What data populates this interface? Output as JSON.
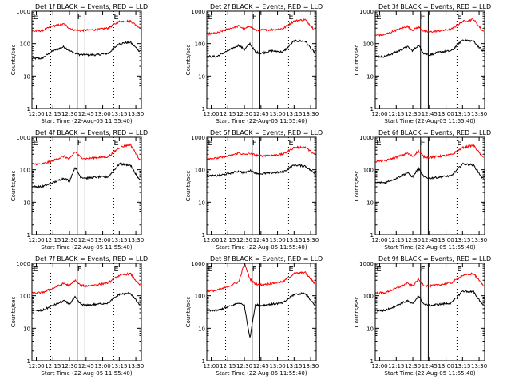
{
  "chart_data": [
    {
      "type": "line",
      "title": "Det 1f BLACK = Events, RED = LLD",
      "xlabel": "Start Time (22-Aug-05 11:55:40)",
      "ylabel": "Counts/sec",
      "yscale": "log",
      "ylim": [
        1,
        1000
      ],
      "xlim": [
        "11:56",
        "13:35"
      ],
      "x_tick_labels": [
        "12:00",
        "12:15",
        "12:30",
        "12:45",
        "13:00",
        "13:15",
        "13:30"
      ],
      "y_tick_labels": [
        "1",
        "10",
        "100",
        "1000"
      ],
      "markers": [
        "E",
        "F",
        "E"
      ],
      "colors": {
        "events": "#000000",
        "lld": "#ff0000"
      },
      "series": [
        {
          "name": "BLACK = Events",
          "x": [
            "11:56",
            "12:05",
            "12:15",
            "12:25",
            "12:30",
            "12:35",
            "12:40",
            "12:45",
            "12:55",
            "13:05",
            "13:15",
            "13:25",
            "13:33"
          ],
          "y": [
            35,
            35,
            60,
            80,
            60,
            50,
            45,
            45,
            45,
            50,
            100,
            110,
            60
          ]
        },
        {
          "name": "RED = LLD",
          "x": [
            "11:56",
            "12:05",
            "12:15",
            "12:25",
            "12:30",
            "12:35",
            "12:40",
            "12:45",
            "12:55",
            "13:05",
            "13:15",
            "13:25",
            "13:33"
          ],
          "y": [
            240,
            250,
            350,
            400,
            300,
            260,
            250,
            260,
            270,
            300,
            480,
            500,
            320
          ]
        }
      ]
    },
    {
      "type": "line",
      "title": "Det 2f BLACK = Events, RED = LLD",
      "xlabel": "Start Time (22-Aug-05 11:55:40)",
      "ylabel": "Counts/sec",
      "yscale": "log",
      "ylim": [
        1,
        1000
      ],
      "xlim": [
        "11:56",
        "13:35"
      ],
      "x_tick_labels": [
        "12:00",
        "12:15",
        "12:30",
        "12:45",
        "13:00",
        "13:15",
        "13:30"
      ],
      "y_tick_labels": [
        "1",
        "10",
        "100",
        "1000"
      ],
      "markers": [
        "E",
        "F",
        "E"
      ],
      "colors": {
        "events": "#000000",
        "lld": "#ff0000"
      },
      "series": [
        {
          "name": "BLACK = Events",
          "x": [
            "11:56",
            "12:05",
            "12:15",
            "12:25",
            "12:30",
            "12:35",
            "12:40",
            "12:45",
            "12:55",
            "13:05",
            "13:15",
            "13:25",
            "13:33"
          ],
          "y": [
            40,
            40,
            60,
            90,
            65,
            100,
            55,
            50,
            60,
            55,
            120,
            120,
            55
          ]
        },
        {
          "name": "RED = LLD",
          "x": [
            "11:56",
            "12:05",
            "12:15",
            "12:25",
            "12:30",
            "12:35",
            "12:40",
            "12:45",
            "12:55",
            "13:05",
            "13:15",
            "13:25",
            "13:33"
          ],
          "y": [
            200,
            210,
            280,
            350,
            280,
            350,
            260,
            260,
            270,
            290,
            500,
            550,
            280
          ]
        }
      ]
    },
    {
      "type": "line",
      "title": "Det 3f BLACK = Events, RED = LLD",
      "xlabel": "Start Time (22-Aug-05 11:55:40)",
      "ylabel": "Counts/sec",
      "yscale": "log",
      "ylim": [
        1,
        1000
      ],
      "xlim": [
        "11:56",
        "13:35"
      ],
      "x_tick_labels": [
        "12:00",
        "12:15",
        "12:30",
        "12:45",
        "13:00",
        "13:15",
        "13:30"
      ],
      "y_tick_labels": [
        "1",
        "10",
        "100",
        "1000"
      ],
      "markers": [
        "E",
        "F",
        "E"
      ],
      "colors": {
        "events": "#000000",
        "lld": "#ff0000"
      },
      "series": [
        {
          "name": "BLACK = Events",
          "x": [
            "11:56",
            "12:05",
            "12:15",
            "12:25",
            "12:30",
            "12:35",
            "12:40",
            "12:45",
            "12:55",
            "13:05",
            "13:15",
            "13:25",
            "13:33"
          ],
          "y": [
            40,
            40,
            55,
            80,
            60,
            90,
            50,
            45,
            55,
            60,
            130,
            120,
            60
          ]
        },
        {
          "name": "RED = LLD",
          "x": [
            "11:56",
            "12:05",
            "12:15",
            "12:25",
            "12:30",
            "12:35",
            "12:40",
            "12:45",
            "12:55",
            "13:05",
            "13:15",
            "13:25",
            "13:33"
          ],
          "y": [
            180,
            190,
            260,
            340,
            260,
            330,
            240,
            230,
            250,
            280,
            480,
            560,
            250
          ]
        }
      ]
    },
    {
      "type": "line",
      "title": "Det 4f BLACK = Events, RED = LLD",
      "xlabel": "Start Time (22-Aug-05 11:55:40)",
      "ylabel": "Counts/sec",
      "yscale": "log",
      "ylim": [
        1,
        1000
      ],
      "xlim": [
        "11:56",
        "13:35"
      ],
      "x_tick_labels": [
        "12:00",
        "12:15",
        "12:30",
        "12:45",
        "13:00",
        "13:15",
        "13:30"
      ],
      "y_tick_labels": [
        "1",
        "10",
        "100",
        "1000"
      ],
      "markers": [
        "E",
        "F",
        "E"
      ],
      "colors": {
        "events": "#000000",
        "lld": "#ff0000"
      },
      "series": [
        {
          "name": "BLACK = Events",
          "x": [
            "11:56",
            "12:05",
            "12:15",
            "12:25",
            "12:30",
            "12:35",
            "12:40",
            "12:45",
            "12:55",
            "13:05",
            "13:15",
            "13:25",
            "13:33"
          ],
          "y": [
            30,
            30,
            40,
            55,
            45,
            120,
            60,
            55,
            60,
            60,
            150,
            140,
            50
          ]
        },
        {
          "name": "RED = LLD",
          "x": [
            "11:56",
            "12:05",
            "12:15",
            "12:25",
            "12:30",
            "12:35",
            "12:40",
            "12:45",
            "12:55",
            "13:05",
            "13:15",
            "13:25",
            "13:33"
          ],
          "y": [
            150,
            150,
            190,
            260,
            210,
            360,
            240,
            220,
            240,
            250,
            480,
            600,
            220
          ]
        }
      ]
    },
    {
      "type": "line",
      "title": "Det 5f BLACK = Events, RED = LLD",
      "xlabel": "Start Time (22-Aug-05 11:55:40)",
      "ylabel": "Counts/sec",
      "yscale": "log",
      "ylim": [
        1,
        1000
      ],
      "xlim": [
        "11:56",
        "13:35"
      ],
      "x_tick_labels": [
        "12:00",
        "12:15",
        "12:30",
        "12:45",
        "13:00",
        "13:15",
        "13:30"
      ],
      "y_tick_labels": [
        "1",
        "10",
        "100",
        "1000"
      ],
      "markers": [
        "E",
        "F",
        "E"
      ],
      "colors": {
        "events": "#000000",
        "lld": "#ff0000"
      },
      "series": [
        {
          "name": "BLACK = Events",
          "x": [
            "11:56",
            "12:05",
            "12:15",
            "12:25",
            "12:30",
            "12:35",
            "12:40",
            "12:45",
            "12:55",
            "13:05",
            "13:15",
            "13:25",
            "13:33"
          ],
          "y": [
            65,
            65,
            75,
            90,
            80,
            95,
            80,
            75,
            80,
            85,
            140,
            130,
            80
          ]
        },
        {
          "name": "RED = LLD",
          "x": [
            "11:56",
            "12:05",
            "12:15",
            "12:25",
            "12:30",
            "12:35",
            "12:40",
            "12:45",
            "12:55",
            "13:05",
            "13:15",
            "13:25",
            "13:33"
          ],
          "y": [
            220,
            225,
            260,
            330,
            290,
            320,
            280,
            270,
            280,
            300,
            480,
            500,
            300
          ]
        }
      ]
    },
    {
      "type": "line",
      "title": "Det 6f BLACK = Events, RED = LLD",
      "xlabel": "Start Time (22-Aug-05 11:55:40)",
      "ylabel": "Counts/sec",
      "yscale": "log",
      "ylim": [
        1,
        1000
      ],
      "xlim": [
        "11:56",
        "13:35"
      ],
      "x_tick_labels": [
        "12:00",
        "12:15",
        "12:30",
        "12:45",
        "13:00",
        "13:15",
        "13:30"
      ],
      "y_tick_labels": [
        "1",
        "10",
        "100",
        "1000"
      ],
      "markers": [
        "E",
        "F",
        "E"
      ],
      "colors": {
        "events": "#000000",
        "lld": "#ff0000"
      },
      "series": [
        {
          "name": "BLACK = Events",
          "x": [
            "11:56",
            "12:05",
            "12:15",
            "12:25",
            "12:30",
            "12:35",
            "12:40",
            "12:45",
            "12:55",
            "13:05",
            "13:15",
            "13:25",
            "13:33"
          ],
          "y": [
            40,
            40,
            55,
            80,
            60,
            110,
            60,
            55,
            60,
            65,
            150,
            140,
            55
          ]
        },
        {
          "name": "RED = LLD",
          "x": [
            "11:56",
            "12:05",
            "12:15",
            "12:25",
            "12:30",
            "12:35",
            "12:40",
            "12:45",
            "12:55",
            "13:05",
            "13:15",
            "13:25",
            "13:33"
          ],
          "y": [
            180,
            190,
            240,
            320,
            260,
            380,
            250,
            240,
            260,
            290,
            480,
            560,
            250
          ]
        }
      ]
    },
    {
      "type": "line",
      "title": "Det 7f BLACK = Events, RED = LLD",
      "xlabel": "Start Time (22-Aug-05 11:55:40)",
      "ylabel": "Counts/sec",
      "yscale": "log",
      "ylim": [
        1,
        1000
      ],
      "xlim": [
        "11:56",
        "13:35"
      ],
      "x_tick_labels": [
        "12:00",
        "12:15",
        "12:30",
        "12:45",
        "13:00",
        "13:15",
        "13:30"
      ],
      "y_tick_labels": [
        "1",
        "10",
        "100",
        "1000"
      ],
      "markers": [
        "E",
        "F",
        "E"
      ],
      "colors": {
        "events": "#000000",
        "lld": "#ff0000"
      },
      "series": [
        {
          "name": "BLACK = Events",
          "x": [
            "11:56",
            "12:05",
            "12:15",
            "12:25",
            "12:30",
            "12:35",
            "12:40",
            "12:45",
            "12:55",
            "13:05",
            "13:15",
            "13:25",
            "13:33"
          ],
          "y": [
            35,
            35,
            50,
            70,
            55,
            90,
            55,
            50,
            55,
            60,
            110,
            120,
            55
          ]
        },
        {
          "name": "RED = LLD",
          "x": [
            "11:56",
            "12:05",
            "12:15",
            "12:25",
            "12:30",
            "12:35",
            "12:40",
            "12:45",
            "12:55",
            "13:05",
            "13:15",
            "13:25",
            "13:33"
          ],
          "y": [
            120,
            125,
            170,
            240,
            200,
            300,
            210,
            200,
            220,
            250,
            420,
            480,
            220
          ]
        }
      ]
    },
    {
      "type": "line",
      "title": "Det 8f BLACK = Events, RED = LLD",
      "xlabel": "Start Time (22-Aug-05 11:55:40)",
      "ylabel": "Counts/sec",
      "yscale": "log",
      "ylim": [
        1,
        1000
      ],
      "xlim": [
        "11:56",
        "13:35"
      ],
      "x_tick_labels": [
        "12:00",
        "12:15",
        "12:30",
        "12:45",
        "13:00",
        "13:15",
        "13:30"
      ],
      "y_tick_labels": [
        "1",
        "10",
        "100",
        "1000"
      ],
      "markers": [
        "E",
        "F",
        "E"
      ],
      "colors": {
        "events": "#000000",
        "lld": "#ff0000"
      },
      "series": [
        {
          "name": "BLACK = Events",
          "x": [
            "11:56",
            "12:05",
            "12:15",
            "12:25",
            "12:30",
            "12:35",
            "12:40",
            "12:45",
            "12:55",
            "13:05",
            "13:15",
            "13:25",
            "13:33"
          ],
          "y": [
            35,
            35,
            45,
            60,
            50,
            5,
            55,
            50,
            55,
            60,
            110,
            120,
            55
          ]
        },
        {
          "name": "RED = LLD",
          "x": [
            "11:56",
            "12:05",
            "12:15",
            "12:25",
            "12:30",
            "12:35",
            "12:40",
            "12:45",
            "12:55",
            "13:05",
            "13:15",
            "13:25",
            "13:33"
          ],
          "y": [
            140,
            145,
            190,
            270,
            1000,
            330,
            230,
            220,
            240,
            270,
            480,
            520,
            250
          ]
        }
      ]
    },
    {
      "type": "line",
      "title": "Det 9f BLACK = Events, RED = LLD",
      "xlabel": "Start Time (22-Aug-05 11:55:40)",
      "ylabel": "Counts/sec",
      "yscale": "log",
      "ylim": [
        1,
        1000
      ],
      "xlim": [
        "11:56",
        "13:35"
      ],
      "x_tick_labels": [
        "12:00",
        "12:15",
        "12:30",
        "12:45",
        "13:00",
        "13:15",
        "13:30"
      ],
      "y_tick_labels": [
        "1",
        "10",
        "100",
        "1000"
      ],
      "markers": [
        "E",
        "F",
        "E"
      ],
      "colors": {
        "events": "#000000",
        "lld": "#ff0000"
      },
      "series": [
        {
          "name": "BLACK = Events",
          "x": [
            "11:56",
            "12:05",
            "12:15",
            "12:25",
            "12:30",
            "12:35",
            "12:40",
            "12:45",
            "12:55",
            "13:05",
            "13:15",
            "13:25",
            "13:33"
          ],
          "y": [
            35,
            35,
            50,
            70,
            55,
            100,
            55,
            50,
            55,
            60,
            140,
            130,
            55
          ]
        },
        {
          "name": "RED = LLD",
          "x": [
            "11:56",
            "12:05",
            "12:15",
            "12:25",
            "12:30",
            "12:35",
            "12:40",
            "12:45",
            "12:55",
            "13:05",
            "13:15",
            "13:25",
            "13:33"
          ],
          "y": [
            120,
            125,
            170,
            240,
            200,
            320,
            210,
            200,
            220,
            250,
            420,
            480,
            220
          ]
        }
      ]
    }
  ]
}
